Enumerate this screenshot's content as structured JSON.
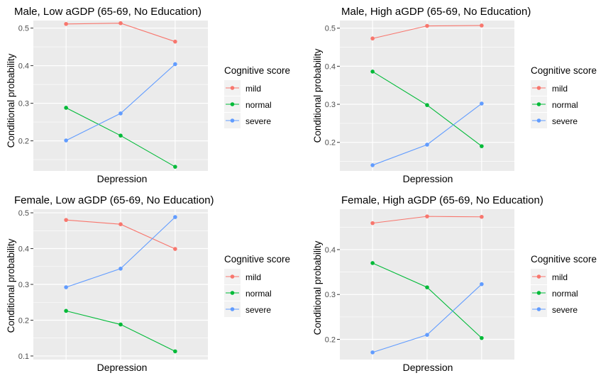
{
  "chart_data": [
    {
      "type": "line",
      "title": "Male, Low aGDP (65-69, No Education)",
      "xlabel": "Depression",
      "ylabel": "Conditional probability",
      "x": [
        1,
        2,
        3
      ],
      "ylim": [
        0.12,
        0.52
      ],
      "yticks": [
        0.2,
        0.3,
        0.4,
        0.5
      ],
      "yticklabels": [
        "0.2",
        "0.3",
        "0.4",
        "0.5"
      ],
      "grid": true,
      "legend": {
        "title": "Cognitive score",
        "position": "right"
      },
      "series": [
        {
          "name": "mild",
          "color": "#F8766D",
          "values": [
            0.511,
            0.513,
            0.464
          ]
        },
        {
          "name": "normal",
          "color": "#00BA38",
          "values": [
            0.288,
            0.214,
            0.131
          ]
        },
        {
          "name": "severe",
          "color": "#619CFF",
          "values": [
            0.201,
            0.273,
            0.404
          ]
        }
      ]
    },
    {
      "type": "line",
      "title": "Male, High aGDP (65-69, No Education)",
      "xlabel": "Depression",
      "ylabel": "Conditional probability",
      "x": [
        1,
        2,
        3
      ],
      "ylim": [
        0.125,
        0.52
      ],
      "yticks": [
        0.2,
        0.3,
        0.4,
        0.5
      ],
      "yticklabels": [
        "0.2",
        "0.3",
        "0.4",
        "0.5"
      ],
      "grid": true,
      "legend": {
        "title": "Cognitive score",
        "position": "right"
      },
      "series": [
        {
          "name": "mild",
          "color": "#F8766D",
          "values": [
            0.473,
            0.506,
            0.507
          ]
        },
        {
          "name": "normal",
          "color": "#00BA38",
          "values": [
            0.386,
            0.298,
            0.19
          ]
        },
        {
          "name": "severe",
          "color": "#619CFF",
          "values": [
            0.14,
            0.194,
            0.302
          ]
        }
      ]
    },
    {
      "type": "line",
      "title": "Female, Low aGDP (65-69, No Education)",
      "xlabel": "Depression",
      "ylabel": "Conditional probability",
      "x": [
        1,
        2,
        3
      ],
      "ylim": [
        0.09,
        0.51
      ],
      "yticks": [
        0.1,
        0.2,
        0.3,
        0.4,
        0.5
      ],
      "yticklabels": [
        "0.1",
        "0.2",
        "0.3",
        "0.4",
        "0.5"
      ],
      "grid": true,
      "legend": {
        "title": "Cognitive score",
        "position": "right"
      },
      "series": [
        {
          "name": "mild",
          "color": "#F8766D",
          "values": [
            0.48,
            0.468,
            0.399
          ]
        },
        {
          "name": "normal",
          "color": "#00BA38",
          "values": [
            0.226,
            0.188,
            0.113
          ]
        },
        {
          "name": "severe",
          "color": "#619CFF",
          "values": [
            0.292,
            0.344,
            0.488
          ]
        }
      ]
    },
    {
      "type": "line",
      "title": "Female, High aGDP (65-69, No Education)",
      "xlabel": "Depression",
      "ylabel": "Conditional probability",
      "x": [
        1,
        2,
        3
      ],
      "ylim": [
        0.155,
        0.49
      ],
      "yticks": [
        0.2,
        0.3,
        0.4
      ],
      "yticklabels": [
        "0.2",
        "0.3",
        "0.4"
      ],
      "grid": true,
      "legend": {
        "title": "Cognitive score",
        "position": "right"
      },
      "series": [
        {
          "name": "mild",
          "color": "#F8766D",
          "values": [
            0.459,
            0.474,
            0.473
          ]
        },
        {
          "name": "normal",
          "color": "#00BA38",
          "values": [
            0.37,
            0.316,
            0.203
          ]
        },
        {
          "name": "severe",
          "color": "#619CFF",
          "values": [
            0.171,
            0.21,
            0.323
          ]
        }
      ]
    }
  ]
}
